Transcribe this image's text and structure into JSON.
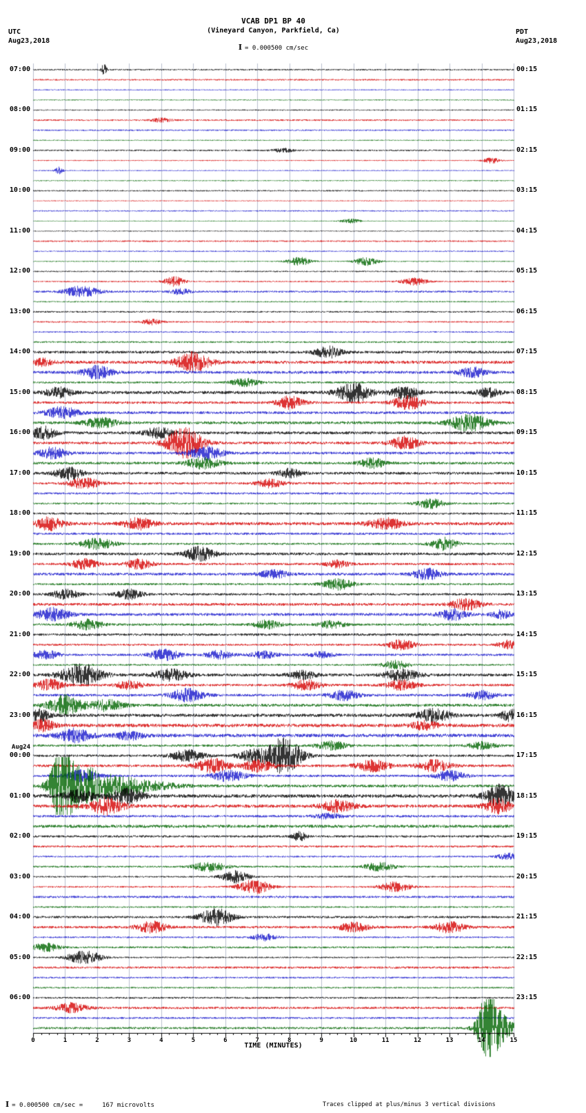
{
  "header": {
    "title": "VCAB DP1 BP 40",
    "subtitle": "(Vineyard Canyon, Parkfield, Ca)",
    "scale_text": "= 0.000500 cm/sec",
    "left_tz": "UTC",
    "left_date": "Aug23,2018",
    "right_tz": "PDT",
    "right_date": "Aug23,2018"
  },
  "axis": {
    "xlabel": "TIME (MINUTES)",
    "tick_labels": [
      "0",
      "1",
      "2",
      "3",
      "4",
      "5",
      "6",
      "7",
      "8",
      "9",
      "10",
      "11",
      "12",
      "13",
      "14",
      "15"
    ]
  },
  "footer": {
    "scale_text": "= 0.000500 cm/sec =",
    "microvolts": "167 microvolts",
    "clip_note": "Traces clipped at plus/minus 3 vertical divisions"
  },
  "chart_data": {
    "type": "line",
    "title": "VCAB DP1 BP 40",
    "subtitle": "(Vineyard Canyon, Parkfield, Ca)",
    "xlabel": "TIME (MINUTES)",
    "x_range_minutes": [
      0,
      15
    ],
    "num_traces": 96,
    "traces_per_hour": 4,
    "minutes_per_trace": 15,
    "trace_colors": [
      "#000000",
      "#d40000",
      "#1515cc",
      "#006400"
    ],
    "grid_color": "#9aa2b8",
    "clip_divisions": 3,
    "left_time_labels": [
      {
        "trace": 0,
        "label": "07:00"
      },
      {
        "trace": 4,
        "label": "08:00"
      },
      {
        "trace": 8,
        "label": "09:00"
      },
      {
        "trace": 12,
        "label": "10:00"
      },
      {
        "trace": 16,
        "label": "11:00"
      },
      {
        "trace": 20,
        "label": "12:00"
      },
      {
        "trace": 24,
        "label": "13:00"
      },
      {
        "trace": 28,
        "label": "14:00"
      },
      {
        "trace": 32,
        "label": "15:00"
      },
      {
        "trace": 36,
        "label": "16:00"
      },
      {
        "trace": 40,
        "label": "17:00"
      },
      {
        "trace": 44,
        "label": "18:00"
      },
      {
        "trace": 48,
        "label": "19:00"
      },
      {
        "trace": 52,
        "label": "20:00"
      },
      {
        "trace": 56,
        "label": "21:00"
      },
      {
        "trace": 60,
        "label": "22:00"
      },
      {
        "trace": 64,
        "label": "23:00"
      },
      {
        "trace": 68,
        "label": "00:00",
        "date": "Aug24"
      },
      {
        "trace": 72,
        "label": "01:00"
      },
      {
        "trace": 76,
        "label": "02:00"
      },
      {
        "trace": 80,
        "label": "03:00"
      },
      {
        "trace": 84,
        "label": "04:00"
      },
      {
        "trace": 88,
        "label": "05:00"
      },
      {
        "trace": 92,
        "label": "06:00"
      }
    ],
    "right_time_labels": [
      {
        "trace": 0,
        "label": "00:15"
      },
      {
        "trace": 4,
        "label": "01:15"
      },
      {
        "trace": 8,
        "label": "02:15"
      },
      {
        "trace": 12,
        "label": "03:15"
      },
      {
        "trace": 16,
        "label": "04:15"
      },
      {
        "trace": 20,
        "label": "05:15"
      },
      {
        "trace": 24,
        "label": "06:15"
      },
      {
        "trace": 28,
        "label": "07:15"
      },
      {
        "trace": 32,
        "label": "08:15"
      },
      {
        "trace": 36,
        "label": "09:15"
      },
      {
        "trace": 40,
        "label": "10:15"
      },
      {
        "trace": 44,
        "label": "11:15"
      },
      {
        "trace": 48,
        "label": "12:15"
      },
      {
        "trace": 52,
        "label": "13:15"
      },
      {
        "trace": 56,
        "label": "14:15"
      },
      {
        "trace": 60,
        "label": "15:15"
      },
      {
        "trace": 64,
        "label": "16:15"
      },
      {
        "trace": 68,
        "label": "17:15"
      },
      {
        "trace": 72,
        "label": "18:15"
      },
      {
        "trace": 76,
        "label": "19:15"
      },
      {
        "trace": 80,
        "label": "20:15"
      },
      {
        "trace": 84,
        "label": "21:15"
      },
      {
        "trace": 88,
        "label": "22:15"
      },
      {
        "trace": 92,
        "label": "23:15"
      }
    ],
    "event_fields": [
      "trace",
      "minute",
      "amplitude",
      "width_min"
    ],
    "events": [
      [
        0,
        2.2,
        9,
        0.08
      ],
      [
        5,
        4.0,
        3,
        0.3
      ],
      [
        8,
        7.8,
        3,
        0.3
      ],
      [
        9,
        14.3,
        4,
        0.25
      ],
      [
        10,
        0.8,
        5,
        0.12
      ],
      [
        15,
        9.9,
        3,
        0.3
      ],
      [
        19,
        8.3,
        6,
        0.35
      ],
      [
        19,
        10.4,
        6,
        0.35
      ],
      [
        21,
        4.4,
        7,
        0.3
      ],
      [
        21,
        11.9,
        5,
        0.4
      ],
      [
        22,
        1.5,
        8,
        0.5
      ],
      [
        22,
        4.6,
        4,
        0.3
      ],
      [
        25,
        3.7,
        4,
        0.3
      ],
      [
        28,
        9.2,
        8,
        0.4
      ],
      [
        29,
        0.3,
        5,
        0.3
      ],
      [
        29,
        5.0,
        14,
        0.5
      ],
      [
        30,
        2.0,
        9,
        0.45
      ],
      [
        30,
        13.7,
        7,
        0.4
      ],
      [
        31,
        6.6,
        6,
        0.4
      ],
      [
        32,
        0.8,
        7,
        0.4
      ],
      [
        32,
        10.0,
        14,
        0.5
      ],
      [
        32,
        11.6,
        9,
        0.4
      ],
      [
        32,
        14.2,
        6,
        0.35
      ],
      [
        33,
        8.0,
        9,
        0.4
      ],
      [
        33,
        11.7,
        10,
        0.45
      ],
      [
        34,
        0.9,
        8,
        0.5
      ],
      [
        35,
        2.1,
        7,
        0.5
      ],
      [
        35,
        13.6,
        12,
        0.6
      ],
      [
        36,
        0.3,
        9,
        0.4
      ],
      [
        36,
        3.9,
        8,
        0.4
      ],
      [
        37,
        4.7,
        22,
        0.55
      ],
      [
        37,
        11.6,
        9,
        0.45
      ],
      [
        38,
        0.6,
        8,
        0.4
      ],
      [
        38,
        5.4,
        9,
        0.5
      ],
      [
        39,
        5.3,
        8,
        0.5
      ],
      [
        39,
        10.6,
        7,
        0.4
      ],
      [
        40,
        1.1,
        9,
        0.4
      ],
      [
        40,
        8.0,
        6,
        0.35
      ],
      [
        41,
        1.6,
        8,
        0.45
      ],
      [
        41,
        7.4,
        6,
        0.4
      ],
      [
        43,
        12.4,
        7,
        0.4
      ],
      [
        45,
        0.5,
        9,
        0.4
      ],
      [
        45,
        3.3,
        8,
        0.45
      ],
      [
        45,
        11.0,
        8,
        0.5
      ],
      [
        47,
        2.0,
        8,
        0.5
      ],
      [
        47,
        12.8,
        9,
        0.4
      ],
      [
        48,
        5.2,
        10,
        0.45
      ],
      [
        49,
        1.6,
        7,
        0.4
      ],
      [
        49,
        3.3,
        7,
        0.4
      ],
      [
        49,
        9.5,
        5,
        0.35
      ],
      [
        50,
        7.5,
        6,
        0.4
      ],
      [
        50,
        12.3,
        8,
        0.4
      ],
      [
        51,
        9.5,
        8,
        0.45
      ],
      [
        52,
        1.0,
        7,
        0.4
      ],
      [
        52,
        3.0,
        7,
        0.4
      ],
      [
        53,
        13.5,
        8,
        0.45
      ],
      [
        54,
        0.6,
        9,
        0.5
      ],
      [
        54,
        13.1,
        8,
        0.4
      ],
      [
        54,
        14.6,
        6,
        0.3
      ],
      [
        55,
        1.7,
        7,
        0.45
      ],
      [
        55,
        7.3,
        6,
        0.4
      ],
      [
        55,
        9.3,
        5,
        0.4
      ],
      [
        57,
        11.5,
        7,
        0.4
      ],
      [
        57,
        14.8,
        6,
        0.3
      ],
      [
        58,
        0.4,
        6,
        0.4
      ],
      [
        58,
        4.1,
        8,
        0.45
      ],
      [
        58,
        5.8,
        6,
        0.4
      ],
      [
        58,
        7.2,
        5,
        0.4
      ],
      [
        58,
        9.0,
        4,
        0.35
      ],
      [
        59,
        11.3,
        6,
        0.4
      ],
      [
        60,
        1.5,
        16,
        0.6
      ],
      [
        60,
        4.3,
        8,
        0.5
      ],
      [
        60,
        8.4,
        6,
        0.4
      ],
      [
        60,
        11.5,
        8,
        0.5
      ],
      [
        61,
        0.5,
        8,
        0.4
      ],
      [
        61,
        3.0,
        6,
        0.4
      ],
      [
        61,
        8.5,
        7,
        0.45
      ],
      [
        61,
        11.5,
        7,
        0.45
      ],
      [
        62,
        4.8,
        9,
        0.5
      ],
      [
        62,
        9.7,
        7,
        0.45
      ],
      [
        62,
        14.0,
        6,
        0.4
      ],
      [
        63,
        1.0,
        14,
        0.5
      ],
      [
        63,
        2.3,
        8,
        0.5
      ],
      [
        64,
        0.2,
        8,
        0.3
      ],
      [
        64,
        12.5,
        9,
        0.5
      ],
      [
        64,
        14.9,
        8,
        0.3
      ],
      [
        65,
        0.3,
        8,
        0.35
      ],
      [
        65,
        12.2,
        6,
        0.4
      ],
      [
        66,
        1.3,
        9,
        0.5
      ],
      [
        66,
        3.0,
        6,
        0.4
      ],
      [
        67,
        9.3,
        6,
        0.45
      ],
      [
        67,
        14.0,
        5,
        0.4
      ],
      [
        68,
        4.8,
        8,
        0.5
      ],
      [
        68,
        6.8,
        8,
        0.4
      ],
      [
        68,
        7.8,
        26,
        0.55
      ],
      [
        69,
        5.6,
        10,
        0.5
      ],
      [
        69,
        7.0,
        8,
        0.45
      ],
      [
        69,
        10.6,
        8,
        0.5
      ],
      [
        69,
        12.5,
        8,
        0.5
      ],
      [
        70,
        1.5,
        8,
        0.5
      ],
      [
        70,
        6.1,
        8,
        0.5
      ],
      [
        70,
        13.0,
        7,
        0.45
      ],
      [
        71,
        0.9,
        48,
        0.35
      ],
      [
        71,
        1.5,
        24,
        0.7
      ],
      [
        71,
        2.5,
        10,
        0.9
      ],
      [
        71,
        3.6,
        5,
        1.0
      ],
      [
        72,
        1.4,
        8,
        0.5
      ],
      [
        72,
        2.9,
        10,
        0.5
      ],
      [
        72,
        14.6,
        16,
        0.45
      ],
      [
        73,
        2.3,
        12,
        0.5
      ],
      [
        73,
        9.5,
        8,
        0.5
      ],
      [
        73,
        14.5,
        10,
        0.4
      ],
      [
        74,
        9.2,
        4,
        0.4
      ],
      [
        76,
        8.3,
        7,
        0.2
      ],
      [
        78,
        14.8,
        5,
        0.3
      ],
      [
        79,
        5.5,
        7,
        0.5
      ],
      [
        79,
        10.8,
        6,
        0.45
      ],
      [
        80,
        6.3,
        9,
        0.4
      ],
      [
        81,
        6.9,
        10,
        0.5
      ],
      [
        81,
        11.3,
        7,
        0.45
      ],
      [
        84,
        5.7,
        12,
        0.5
      ],
      [
        85,
        3.7,
        8,
        0.45
      ],
      [
        85,
        10.0,
        7,
        0.45
      ],
      [
        85,
        13.0,
        8,
        0.45
      ],
      [
        86,
        7.2,
        5,
        0.35
      ],
      [
        87,
        0.4,
        6,
        0.4
      ],
      [
        88,
        1.6,
        10,
        0.5
      ],
      [
        93,
        1.2,
        7,
        0.45
      ],
      [
        95,
        14.2,
        48,
        0.3
      ],
      [
        95,
        14.5,
        18,
        0.5
      ]
    ]
  }
}
